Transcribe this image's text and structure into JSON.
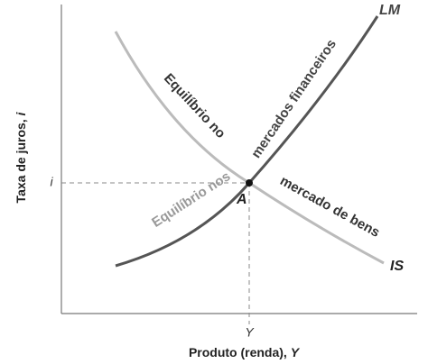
{
  "axes": {
    "y_label": {
      "text": "Taxa de juros,",
      "symbol": "i"
    },
    "x_label": {
      "text": "Produto (renda),",
      "symbol": "Y"
    },
    "y_marker": "i",
    "x_marker": "Y"
  },
  "curves": {
    "lm": {
      "label": "LM",
      "text": "mercados financeiros"
    },
    "is": {
      "label": "IS",
      "text": "mercado de bens"
    }
  },
  "captions": {
    "is_prefix": "Equilíbrio no",
    "lm_prefix": "Equilíbrio nos"
  },
  "point": {
    "label": "A"
  }
}
